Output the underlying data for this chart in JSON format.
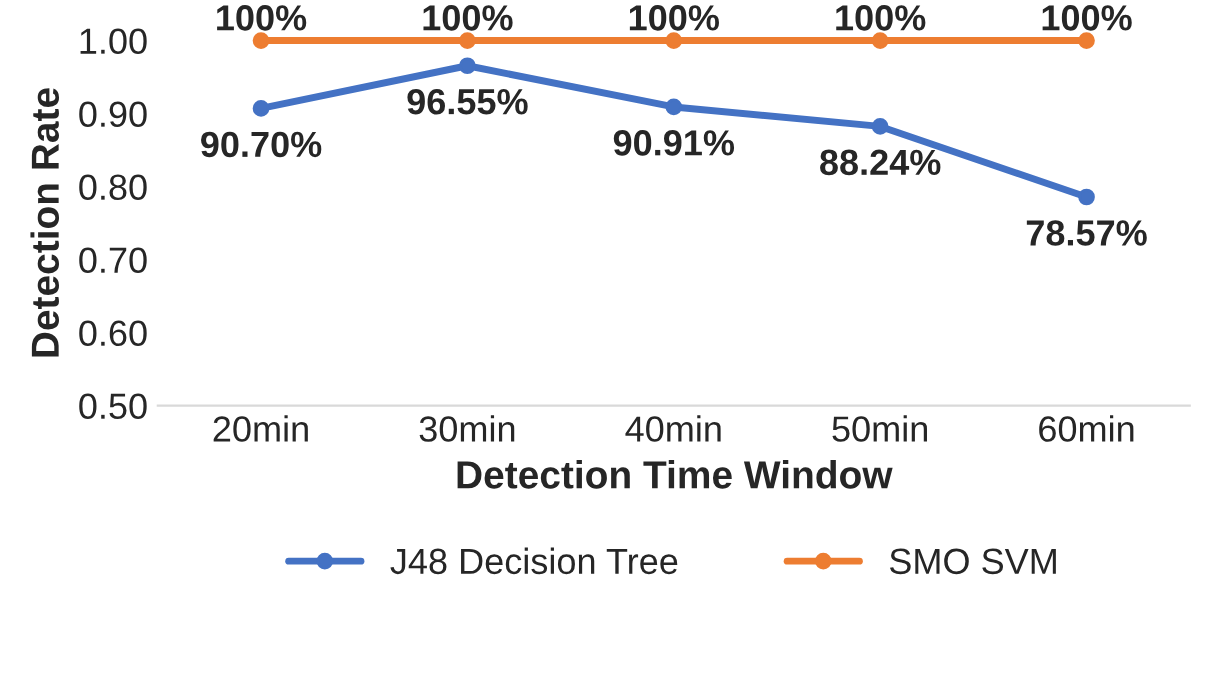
{
  "chart_data": {
    "type": "line",
    "xlabel": "Detection Time Window",
    "ylabel": "Detection Rate",
    "categories": [
      "20min",
      "30min",
      "40min",
      "50min",
      "60min"
    ],
    "series": [
      {
        "name": "J48 Decision Tree",
        "color": "#4472c4",
        "values": [
          0.907,
          0.9655,
          0.9091,
          0.8824,
          0.7857
        ],
        "value_labels": [
          "90.70%",
          "96.55%",
          "90.91%",
          "88.24%",
          "78.57%"
        ]
      },
      {
        "name": "SMO SVM",
        "color": "#ed7d31",
        "values": [
          1.0,
          1.0,
          1.0,
          1.0,
          1.0
        ],
        "value_labels": [
          "100%",
          "100%",
          "100%",
          "100%",
          "100%"
        ]
      }
    ],
    "ylim": [
      0.5,
      1.0
    ],
    "yticks": [
      {
        "value": 0.5,
        "label": "0.50"
      },
      {
        "value": 0.6,
        "label": "0.60"
      },
      {
        "value": 0.7,
        "label": "0.70"
      },
      {
        "value": 0.8,
        "label": "0.80"
      },
      {
        "value": 0.9,
        "label": "0.90"
      },
      {
        "value": 1.0,
        "label": "1.00"
      }
    ],
    "grid": false,
    "legend": "bottom",
    "marker": "circle",
    "line_style": "solid"
  }
}
